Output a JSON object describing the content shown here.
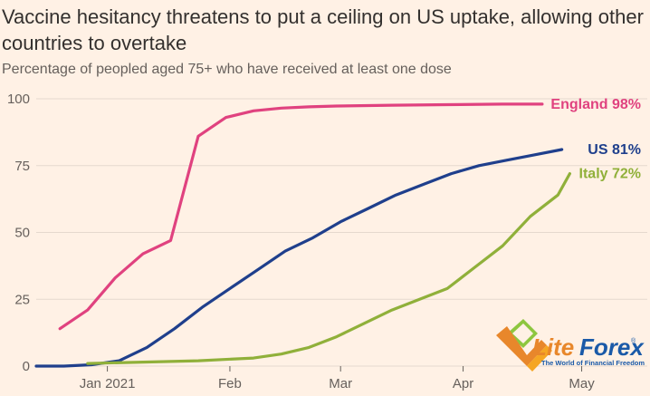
{
  "title": "Vaccine hesitancy threatens to put a ceiling on US uptake, allowing other countries to overtake",
  "subtitle": "Percentage of peopled aged 75+ who have received at least one dose",
  "watermark": {
    "name_part1": "Lite",
    "name_part2": "Forex",
    "registered": "®",
    "tagline": "The World of Financial Freedom"
  },
  "colors": {
    "background": "#fff1e5",
    "grid": "#e6d9ce",
    "england": "#e0427f",
    "us": "#1f3f8c",
    "italy": "#90b03a"
  },
  "chart_data": {
    "type": "line",
    "title": "Vaccine hesitancy threatens to put a ceiling on US uptake, allowing other countries to overtake",
    "subtitle": "Percentage of peopled aged 75+ who have received at least one dose",
    "ylim": [
      0,
      100
    ],
    "yticks": [
      0,
      25,
      50,
      75,
      100
    ],
    "xlim": [
      "2020-12-14",
      "2021-05-05"
    ],
    "xticks": [
      {
        "date": "2021-01-01",
        "label": "Jan 2021"
      },
      {
        "date": "2021-02-01",
        "label": "Feb"
      },
      {
        "date": "2021-03-01",
        "label": "Mar"
      },
      {
        "date": "2021-04-01",
        "label": "Apr"
      },
      {
        "date": "2021-05-01",
        "label": "May"
      }
    ],
    "grid": true,
    "series": [
      {
        "name": "England",
        "end_label": "England 98%",
        "color": "#e0427f",
        "points": [
          [
            "2020-12-20",
            14
          ],
          [
            "2020-12-27",
            21
          ],
          [
            "2021-01-03",
            33
          ],
          [
            "2021-01-10",
            42
          ],
          [
            "2021-01-17",
            47
          ],
          [
            "2021-01-24",
            86
          ],
          [
            "2021-01-31",
            93
          ],
          [
            "2021-02-07",
            95.5
          ],
          [
            "2021-02-14",
            96.5
          ],
          [
            "2021-02-21",
            97
          ],
          [
            "2021-02-28",
            97.3
          ],
          [
            "2021-03-14",
            97.6
          ],
          [
            "2021-03-28",
            97.8
          ],
          [
            "2021-04-11",
            98
          ],
          [
            "2021-04-21",
            98
          ]
        ]
      },
      {
        "name": "US",
        "end_label": "US 81%",
        "color": "#1f3f8c",
        "points": [
          [
            "2020-12-14",
            0
          ],
          [
            "2020-12-21",
            0
          ],
          [
            "2020-12-28",
            0.5
          ],
          [
            "2021-01-04",
            2
          ],
          [
            "2021-01-11",
            7
          ],
          [
            "2021-01-18",
            14
          ],
          [
            "2021-01-25",
            22
          ],
          [
            "2021-02-01",
            29
          ],
          [
            "2021-02-08",
            36
          ],
          [
            "2021-02-15",
            43
          ],
          [
            "2021-02-22",
            48
          ],
          [
            "2021-03-01",
            54
          ],
          [
            "2021-03-08",
            59
          ],
          [
            "2021-03-15",
            64
          ],
          [
            "2021-03-22",
            68
          ],
          [
            "2021-03-29",
            72
          ],
          [
            "2021-04-05",
            75
          ],
          [
            "2021-04-12",
            77
          ],
          [
            "2021-04-19",
            79
          ],
          [
            "2021-04-26",
            81
          ]
        ]
      },
      {
        "name": "Italy",
        "end_label": "Italy 72%",
        "color": "#90b03a",
        "points": [
          [
            "2020-12-27",
            1
          ],
          [
            "2021-01-10",
            1.5
          ],
          [
            "2021-01-24",
            2
          ],
          [
            "2021-02-07",
            3
          ],
          [
            "2021-02-14",
            4.5
          ],
          [
            "2021-02-21",
            7
          ],
          [
            "2021-02-28",
            11
          ],
          [
            "2021-03-07",
            16
          ],
          [
            "2021-03-14",
            21
          ],
          [
            "2021-03-21",
            25
          ],
          [
            "2021-03-28",
            29
          ],
          [
            "2021-04-04",
            37
          ],
          [
            "2021-04-11",
            45
          ],
          [
            "2021-04-18",
            56
          ],
          [
            "2021-04-25",
            64
          ],
          [
            "2021-04-28",
            72
          ]
        ]
      }
    ]
  }
}
